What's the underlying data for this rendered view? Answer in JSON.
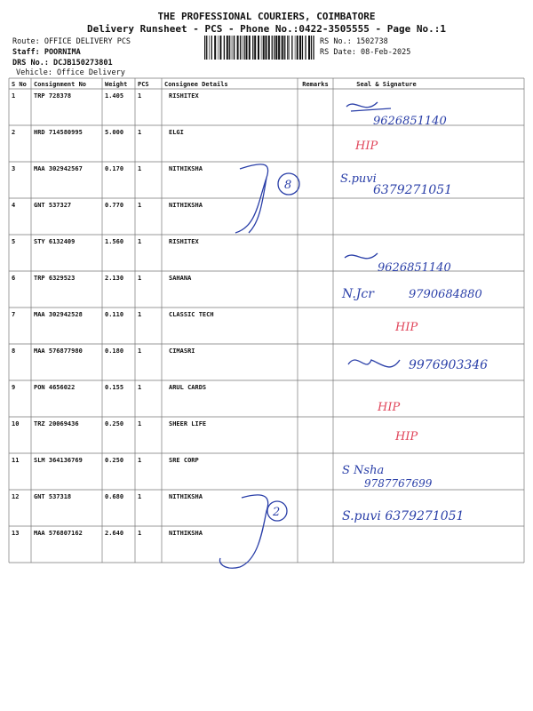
{
  "header": {
    "title": "THE PROFESSIONAL COURIERS, COIMBATORE",
    "subtitle": "Delivery Runsheet - PCS - Phone No.:0422-3505555 - Page No.:1",
    "route": "Route: OFFICE DELIVERY PCS",
    "staff": "Staff: POORNIMA",
    "drs_no": "DRS No.: DCJB150273801",
    "vehicle": "Vehicle: Office Delivery",
    "rs_no": "RS No.: 1502738",
    "rs_date": "RS Date: 08-Feb-2025"
  },
  "table": {
    "columns": [
      "S No",
      "Consignment No",
      "Weight",
      "PCS",
      "Consignee Details",
      "Remarks",
      "Seal & Signature"
    ],
    "rows": [
      [
        "1",
        "TRP 728378",
        "1.405",
        "1",
        "RISHITEX"
      ],
      [
        "2",
        "HRD 714580995",
        "5.000",
        "1",
        "ELGI"
      ],
      [
        "3",
        "MAA 302942567",
        "0.170",
        "1",
        "NITHIKSHA"
      ],
      [
        "4",
        "GNT 537327",
        "0.770",
        "1",
        "NITHIKSHA"
      ],
      [
        "5",
        "STY 6132409",
        "1.560",
        "1",
        "RISHITEX"
      ],
      [
        "6",
        "TRP 6329523",
        "2.130",
        "1",
        "SAHANA"
      ],
      [
        "7",
        "MAA 302942528",
        "0.110",
        "1",
        "CLASSIC TECH"
      ],
      [
        "8",
        "MAA 576877980",
        "0.180",
        "1",
        "CIMASRI"
      ],
      [
        "9",
        "PON 4656022",
        "0.155",
        "1",
        "ARUL CARDS"
      ],
      [
        "10",
        "TRZ 20069436",
        "0.250",
        "1",
        "SHEER LIFE"
      ],
      [
        "11",
        "SLM 364136769",
        "0.250",
        "1",
        "SRE CORP"
      ],
      [
        "12",
        "GNT 537318",
        "0.680",
        "1",
        "NITHIKSHA"
      ],
      [
        "13",
        "MAA 576807162",
        "2.640",
        "1",
        "NITHIKSHA"
      ]
    ]
  },
  "handwriting": [
    "9626851140",
    "HIP",
    "S.puvi",
    "6379271051",
    "8",
    "9626851140",
    "N.Jcr",
    "9790684880",
    "HIP",
    "9976903346",
    "HIP",
    "HIP",
    "S Nsha",
    "9787767699",
    "S.puvi 6379271051",
    "2"
  ]
}
